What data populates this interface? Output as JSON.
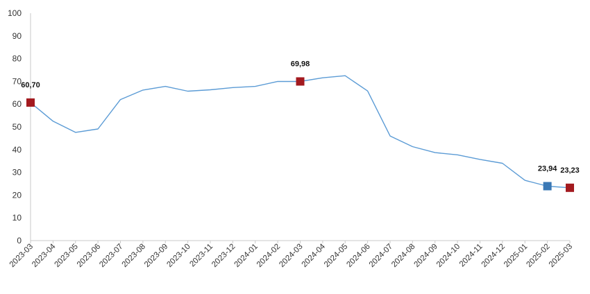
{
  "chart_data": {
    "type": "line",
    "title": "",
    "xlabel": "",
    "ylabel": "",
    "ylim": [
      0,
      100
    ],
    "yticks": [
      0,
      10,
      20,
      30,
      40,
      50,
      60,
      70,
      80,
      90,
      100
    ],
    "grid": false,
    "legend": "none",
    "categories": [
      "2023-03",
      "2023-04",
      "2023-05",
      "2023-06",
      "2023-07",
      "2023-08",
      "2023-09",
      "2023-10",
      "2023-11",
      "2023-12",
      "2024-01",
      "2024-02",
      "2024-03",
      "2024-04",
      "2024-05",
      "2024-06",
      "2024-07",
      "2024-08",
      "2024-09",
      "2024-10",
      "2024-11",
      "2024-12",
      "2025-01",
      "2025-02",
      "2025-03"
    ],
    "series": [
      {
        "color": "#5b9bd5",
        "values": [
          60.7,
          52.5,
          47.6,
          49.1,
          62.0,
          66.2,
          67.8,
          65.7,
          66.3,
          67.3,
          67.8,
          70.0,
          69.98,
          71.6,
          72.5,
          65.8,
          46.0,
          41.3,
          38.7,
          37.7,
          35.7,
          34.0,
          26.5,
          23.94,
          23.23
        ]
      }
    ],
    "highlighted_points": [
      {
        "index": 0,
        "label": "60,70",
        "color": "#a31a1f"
      },
      {
        "index": 12,
        "label": "69,98",
        "color": "#a31a1f"
      },
      {
        "index": 23,
        "label": "23,94",
        "color": "#3a78b5"
      },
      {
        "index": 24,
        "label": "23,23",
        "color": "#a31a1f"
      }
    ],
    "axis_color": "#c8c8c8"
  }
}
